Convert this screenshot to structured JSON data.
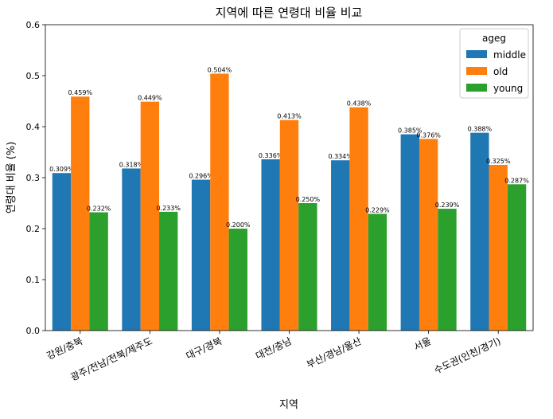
{
  "chart_data": {
    "type": "bar",
    "title": "지역에 따른 연령대 비율 비교",
    "xlabel": "지역",
    "ylabel": "연령대 비율 (%)",
    "ylim": [
      0,
      0.6
    ],
    "yticks": [
      "0.0",
      "0.1",
      "0.2",
      "0.3",
      "0.4",
      "0.5",
      "0.6"
    ],
    "categories": [
      "강원/충북",
      "광주/전남/전북/제주도",
      "대구/경북",
      "대전/충남",
      "부산/경남/울산",
      "서울",
      "수도권(인천/경기)"
    ],
    "series": [
      {
        "name": "middle",
        "color": "#1f77b4",
        "values": [
          0.309,
          0.318,
          0.296,
          0.336,
          0.334,
          0.385,
          0.388
        ],
        "labels": [
          "0.309%",
          "0.318%",
          "0.296%",
          "0.336%",
          "0.334%",
          "0.385%",
          "0.388%"
        ]
      },
      {
        "name": "old",
        "color": "#ff7f0e",
        "values": [
          0.459,
          0.449,
          0.504,
          0.413,
          0.438,
          0.376,
          0.325
        ],
        "labels": [
          "0.459%",
          "0.449%",
          "0.504%",
          "0.413%",
          "0.438%",
          "0.376%",
          "0.325%"
        ]
      },
      {
        "name": "young",
        "color": "#2ca02c",
        "values": [
          0.232,
          0.233,
          0.2,
          0.25,
          0.229,
          0.239,
          0.287
        ],
        "labels": [
          "0.232%",
          "0.233%",
          "0.200%",
          "0.250%",
          "0.229%",
          "0.239%",
          "0.287%"
        ]
      }
    ],
    "legend": {
      "title": "ageg",
      "position": "top-right"
    },
    "grid": false
  }
}
